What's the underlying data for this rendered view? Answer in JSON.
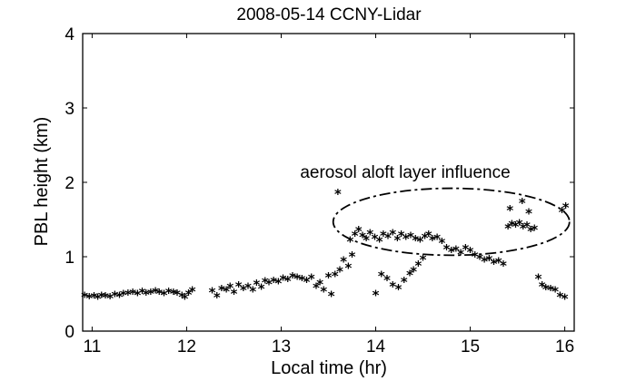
{
  "chart_data": {
    "type": "scatter",
    "title": "2008-05-14 CCNY-Lidar",
    "xlabel": "Local time (hr)",
    "ylabel": "PBL height (km)",
    "xlim": [
      10.9,
      16.1
    ],
    "ylim": [
      0,
      4
    ],
    "xticks": [
      "11",
      "12",
      "13",
      "14",
      "15",
      "16"
    ],
    "yticks": [
      "0",
      "1",
      "2",
      "3",
      "4"
    ],
    "marker": "*",
    "annotation": {
      "text": "aerosol aloft layer influence",
      "ellipse_center": [
        14.8,
        1.47
      ],
      "ellipse_half_width_hr": 1.25,
      "ellipse_half_height_km": 0.45
    },
    "x": [
      10.92,
      10.97,
      11.02,
      11.06,
      11.1,
      11.14,
      11.19,
      11.24,
      11.29,
      11.33,
      11.38,
      11.43,
      11.48,
      11.53,
      11.57,
      11.62,
      11.67,
      11.71,
      11.76,
      11.81,
      11.86,
      11.9,
      11.95,
      11.98,
      12.02,
      12.06,
      12.27,
      12.32,
      12.37,
      12.42,
      12.46,
      12.5,
      12.55,
      12.6,
      12.65,
      12.7,
      12.74,
      12.79,
      12.83,
      12.87,
      12.92,
      12.97,
      13.02,
      13.07,
      13.12,
      13.17,
      13.22,
      13.27,
      13.32,
      13.37,
      13.41,
      13.45,
      13.5,
      13.53,
      13.57,
      13.62,
      13.66,
      13.71,
      13.75,
      13.6,
      13.73,
      13.78,
      13.82,
      13.86,
      13.9,
      13.94,
      13.99,
      14.04,
      14.08,
      14.13,
      14.18,
      14.23,
      14.27,
      14.32,
      14.37,
      14.42,
      14.47,
      14.52,
      14.56,
      14.6,
      14.65,
      14.7,
      14.75,
      14.8,
      14.85,
      14.9,
      14.95,
      15.0,
      15.05,
      15.1,
      15.15,
      15.2,
      15.25,
      15.3,
      15.35,
      14.0,
      14.06,
      14.12,
      14.18,
      14.24,
      14.3,
      14.36,
      14.4,
      14.45,
      14.5,
      15.4,
      15.44,
      15.48,
      15.52,
      15.56,
      15.6,
      15.64,
      15.68,
      15.42,
      15.55,
      15.62,
      15.72,
      15.76,
      15.8,
      15.85,
      15.9,
      15.95,
      16.0,
      15.97,
      16.01
    ],
    "y": [
      0.46,
      0.44,
      0.45,
      0.43,
      0.46,
      0.45,
      0.44,
      0.47,
      0.46,
      0.48,
      0.49,
      0.5,
      0.48,
      0.51,
      0.49,
      0.5,
      0.52,
      0.5,
      0.48,
      0.51,
      0.5,
      0.49,
      0.46,
      0.43,
      0.49,
      0.53,
      0.52,
      0.45,
      0.55,
      0.53,
      0.58,
      0.5,
      0.6,
      0.55,
      0.58,
      0.53,
      0.62,
      0.57,
      0.65,
      0.63,
      0.66,
      0.64,
      0.69,
      0.67,
      0.72,
      0.7,
      0.68,
      0.66,
      0.7,
      0.58,
      0.63,
      0.53,
      0.72,
      0.47,
      0.74,
      0.8,
      0.93,
      0.85,
      1.0,
      1.84,
      1.2,
      1.28,
      1.34,
      1.26,
      1.22,
      1.3,
      1.24,
      1.2,
      1.28,
      1.25,
      1.3,
      1.22,
      1.28,
      1.24,
      1.26,
      1.22,
      1.2,
      1.25,
      1.28,
      1.22,
      1.24,
      1.18,
      1.1,
      1.06,
      1.08,
      1.03,
      1.1,
      1.06,
      1.0,
      0.97,
      0.93,
      0.95,
      0.9,
      0.92,
      0.88,
      0.48,
      0.74,
      0.68,
      0.6,
      0.56,
      0.66,
      0.75,
      0.8,
      0.88,
      0.96,
      1.38,
      1.42,
      1.4,
      1.43,
      1.38,
      1.4,
      1.34,
      1.36,
      1.62,
      1.72,
      1.58,
      0.7,
      0.6,
      0.56,
      0.55,
      0.53,
      0.46,
      0.43,
      1.6,
      1.66
    ]
  }
}
